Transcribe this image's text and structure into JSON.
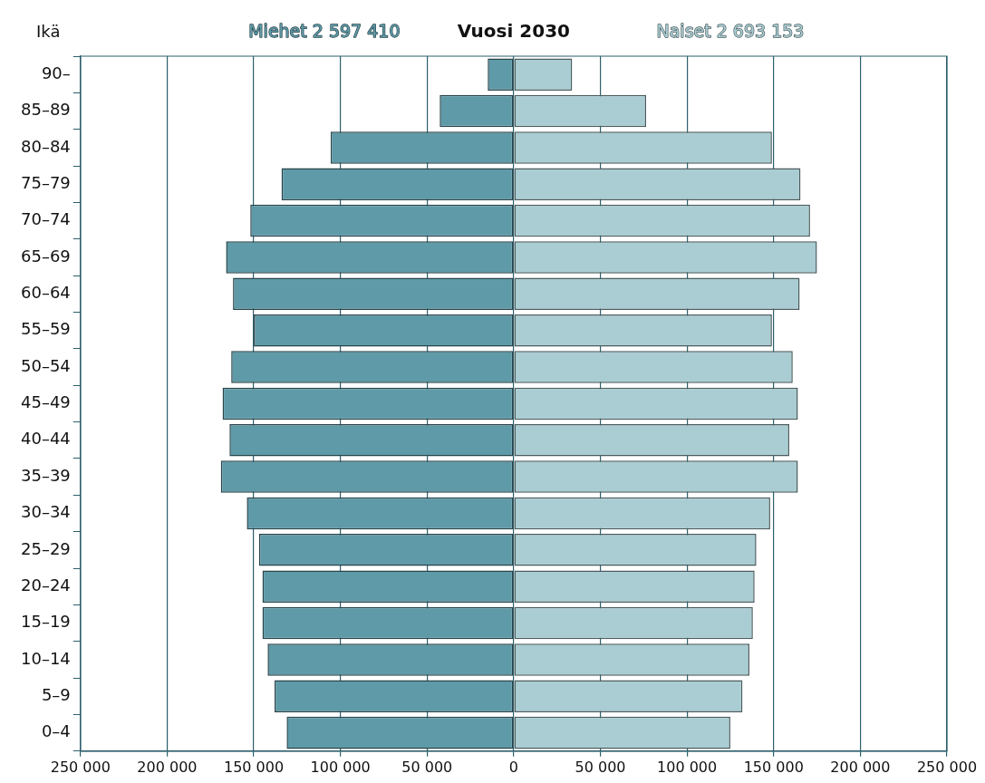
{
  "chart_data": {
    "type": "bar",
    "orientation": "horizontal",
    "stacked": true,
    "title": "Vuosi 2030",
    "ylabel": "Ikä",
    "categories": [
      "90–",
      "85–89",
      "80–84",
      "75–79",
      "70–74",
      "65–69",
      "60–64",
      "55–59",
      "50–54",
      "45–49",
      "40–44",
      "35–39",
      "30–34",
      "25–29",
      "20–24",
      "15–19",
      "10–14",
      "5–9",
      "0–4"
    ],
    "series": [
      {
        "name": "Miehet 2 597 410",
        "color": "#5f9aa8",
        "values": [
          -15000,
          -42700,
          -105600,
          -134000,
          -152000,
          -166000,
          -162000,
          -150000,
          -163000,
          -168000,
          -164000,
          -169000,
          -154000,
          -147000,
          -145000,
          -145000,
          -142000,
          -138000,
          -131000
        ]
      },
      {
        "name": "Naiset 2 693 153",
        "color": "#a9cdd3",
        "values": [
          33700,
          76400,
          149000,
          165500,
          171000,
          175000,
          165000,
          149000,
          161000,
          164000,
          159000,
          164000,
          148000,
          140000,
          139000,
          138000,
          136000,
          132000,
          125000
        ]
      }
    ],
    "xlim": [
      -250000,
      250000
    ],
    "xticks": [
      {
        "value": -250000,
        "label": "250 000"
      },
      {
        "value": -200000,
        "label": "200 000"
      },
      {
        "value": -150000,
        "label": "150 000"
      },
      {
        "value": -100000,
        "label": "100 000"
      },
      {
        "value": -50000,
        "label": "50 000"
      },
      0,
      {
        "value": 50000,
        "label": "50 000"
      },
      {
        "value": 100000,
        "label": "100 000"
      },
      {
        "value": 150000,
        "label": "150 000"
      },
      {
        "value": 200000,
        "label": "200 000"
      },
      {
        "value": 250000,
        "label": "250 000"
      }
    ],
    "grid": "x"
  }
}
